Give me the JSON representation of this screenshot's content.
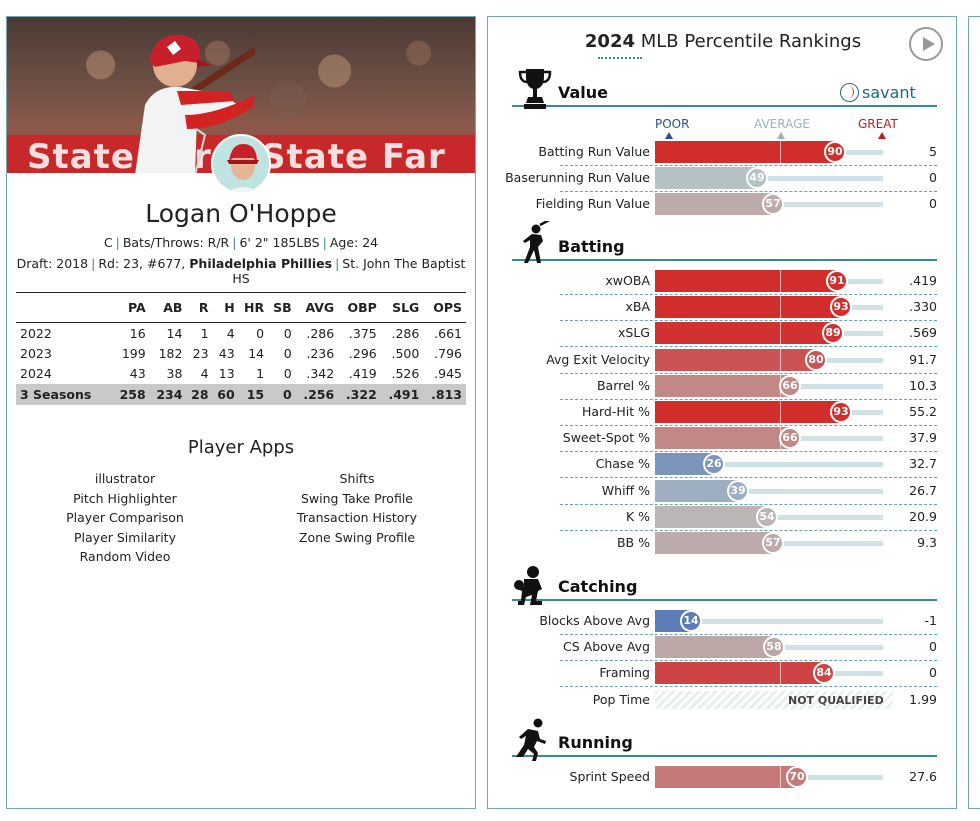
{
  "player": {
    "name": "Logan O'Hoppe",
    "position": "C",
    "bats_throws": "Bats/Throws: R/R",
    "height_weight": "6' 2\" 185LBS",
    "age": "Age: 24",
    "draft": "Draft: 2018",
    "draft_pick": "Rd: 23, #677,",
    "draft_team": "Philadelphia Phillies",
    "school": "St. John The Baptist HS",
    "banner_text": "State Farm  State Far"
  },
  "stats": {
    "headers": [
      "",
      "PA",
      "AB",
      "R",
      "H",
      "HR",
      "SB",
      "AVG",
      "OBP",
      "SLG",
      "OPS"
    ],
    "rows": [
      [
        "2022",
        "16",
        "14",
        "1",
        "4",
        "0",
        "0",
        ".286",
        ".375",
        ".286",
        ".661"
      ],
      [
        "2023",
        "199",
        "182",
        "23",
        "43",
        "14",
        "0",
        ".236",
        ".296",
        ".500",
        ".796"
      ],
      [
        "2024",
        "43",
        "38",
        "4",
        "13",
        "1",
        "0",
        ".342",
        ".419",
        ".526",
        ".945"
      ]
    ],
    "total": [
      "3 Seasons",
      "258",
      "234",
      "28",
      "60",
      "15",
      "0",
      ".256",
      ".322",
      ".491",
      ".813"
    ]
  },
  "apps": {
    "title": "Player Apps",
    "left": [
      "illustrator",
      "Pitch Highlighter",
      "Player Comparison",
      "Player Similarity",
      "Random Video"
    ],
    "right": [
      "Shifts",
      "Swing Take Profile",
      "Transaction History",
      "Zone Swing Profile"
    ]
  },
  "rankings": {
    "title_year": "2024",
    "title_rest": "MLB Percentile Rankings",
    "brand": "savant",
    "scale": {
      "poor": "POOR",
      "average": "AVERAGE",
      "great": "GREAT"
    },
    "not_qualified": "NOT QUALIFIED",
    "sections": [
      {
        "title": "Value",
        "icon": "trophy-icon",
        "metrics": [
          {
            "label": "Batting Run Value",
            "pct": 90,
            "value": "5"
          },
          {
            "label": "Baserunning Run Value",
            "pct": 49,
            "value": "0"
          },
          {
            "label": "Fielding Run Value",
            "pct": 57,
            "value": "0"
          }
        ]
      },
      {
        "title": "Batting",
        "icon": "batter-icon",
        "metrics": [
          {
            "label": "xwOBA",
            "pct": 91,
            "value": ".419"
          },
          {
            "label": "xBA",
            "pct": 93,
            "value": ".330"
          },
          {
            "label": "xSLG",
            "pct": 89,
            "value": ".569"
          },
          {
            "label": "Avg Exit Velocity",
            "pct": 80,
            "value": "91.7"
          },
          {
            "label": "Barrel %",
            "pct": 66,
            "value": "10.3"
          },
          {
            "label": "Hard-Hit %",
            "pct": 93,
            "value": "55.2"
          },
          {
            "label": "Sweet-Spot %",
            "pct": 66,
            "value": "37.9"
          },
          {
            "label": "Chase %",
            "pct": 26,
            "value": "32.7"
          },
          {
            "label": "Whiff %",
            "pct": 39,
            "value": "26.7"
          },
          {
            "label": "K %",
            "pct": 54,
            "value": "20.9"
          },
          {
            "label": "BB %",
            "pct": 57,
            "value": "9.3"
          }
        ]
      },
      {
        "title": "Catching",
        "icon": "catcher-icon",
        "metrics": [
          {
            "label": "Blocks Above Avg",
            "pct": 14,
            "value": "-1"
          },
          {
            "label": "CS Above Avg",
            "pct": 58,
            "value": "0"
          },
          {
            "label": "Framing",
            "pct": 84,
            "value": "0"
          },
          {
            "label": "Pop Time",
            "pct": null,
            "value": "1.99"
          }
        ]
      },
      {
        "title": "Running",
        "icon": "runner-icon",
        "metrics": [
          {
            "label": "Sprint Speed",
            "pct": 70,
            "value": "27.6"
          }
        ]
      }
    ]
  },
  "colors": {
    "accent": "#3a8a94",
    "great": "#d22d2d",
    "poor": "#3a62b0",
    "average": "#b8c4c4"
  }
}
